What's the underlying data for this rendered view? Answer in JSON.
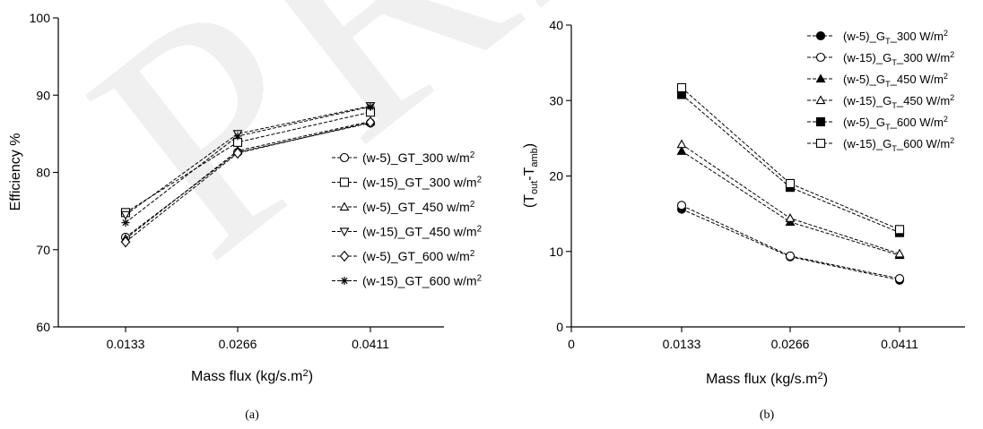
{
  "watermark_text": "PRE",
  "chart_data": [
    {
      "type": "line",
      "panel_label": "(a)",
      "xlabel": "Mass flux (kg/s.m²)",
      "ylabel": "Efficiency %",
      "categories": [
        "0.0133",
        "0.0266",
        "0.0411"
      ],
      "ylim": [
        60,
        100
      ],
      "yticks": [
        60,
        70,
        80,
        90,
        100
      ],
      "legend_position": "center-right",
      "series": [
        {
          "name": "(w-5)_GT_300 w/m²",
          "marker": "circle-open",
          "values": [
            71.6,
            82.6,
            86.4
          ]
        },
        {
          "name": "(w-15)_GT_300 w/m²",
          "marker": "square-open",
          "values": [
            74.8,
            83.9,
            87.8
          ]
        },
        {
          "name": "(w-5)_GT_450 w/m²",
          "marker": "triangle-up-open",
          "values": [
            71.4,
            82.8,
            86.6
          ]
        },
        {
          "name": "(w-15)_GT_450 w/m²",
          "marker": "triangle-down-open",
          "values": [
            74.5,
            85.0,
            88.6
          ]
        },
        {
          "name": "(w-5)_GT_600 w/m²",
          "marker": "diamond-open",
          "values": [
            71.0,
            82.5,
            86.5
          ]
        },
        {
          "name": "(w-15)_GT_600 w/m²",
          "marker": "star",
          "values": [
            73.5,
            84.7,
            88.5
          ]
        }
      ]
    },
    {
      "type": "line",
      "panel_label": "(b)",
      "xlabel": "Mass flux (kg/s.m²)",
      "ylabel_parts": [
        "(T",
        "out",
        "-T",
        "amb",
        ")"
      ],
      "x": [
        0.0133,
        0.0266,
        0.0411
      ],
      "xtick_labels": [
        "0",
        "0.0133",
        "0.0266",
        "0.0411"
      ],
      "ylim": [
        0,
        40
      ],
      "yticks": [
        0,
        10,
        20,
        30,
        40
      ],
      "legend_position": "top-right",
      "series": [
        {
          "name": "(w-5)_GT_300 W/m²",
          "marker": "circle-filled",
          "values": [
            15.6,
            9.3,
            6.2
          ]
        },
        {
          "name": "(w-15)_GT_300 W/m²",
          "marker": "circle-open",
          "values": [
            16.1,
            9.4,
            6.4
          ]
        },
        {
          "name": "(w-5)_GT_450 W/m²",
          "marker": "triangle-filled",
          "values": [
            23.3,
            13.9,
            9.5
          ]
        },
        {
          "name": "(w-15)_GT_450 W/m²",
          "marker": "triangle-open",
          "values": [
            24.2,
            14.4,
            9.7
          ]
        },
        {
          "name": "(w-5)_GT_600 W/m²",
          "marker": "square-filled",
          "values": [
            30.8,
            18.5,
            12.5
          ]
        },
        {
          "name": "(w-15)_GT_600 W/m²",
          "marker": "square-open",
          "values": [
            31.7,
            19.0,
            12.9
          ]
        }
      ]
    }
  ]
}
